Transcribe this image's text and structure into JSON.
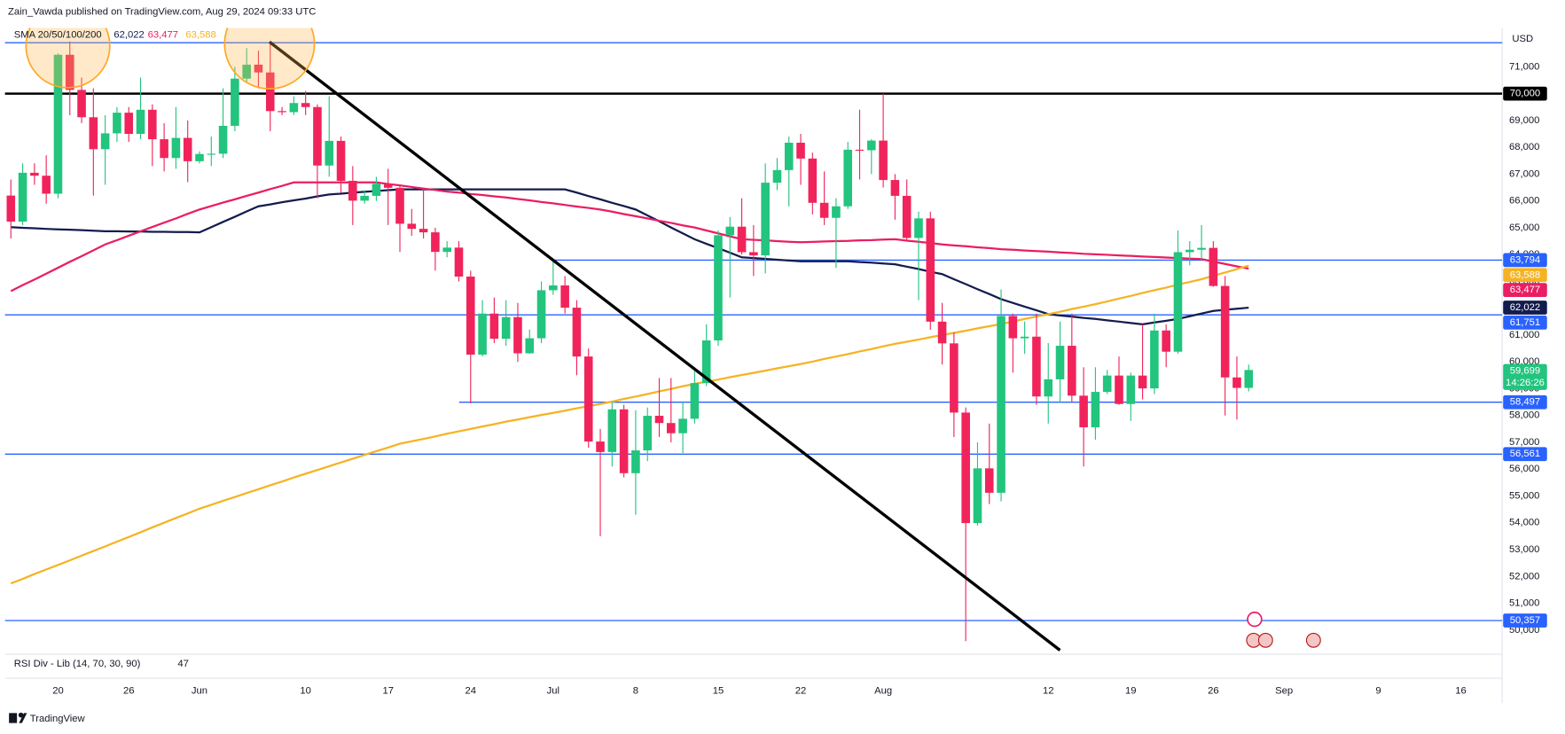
{
  "header": {
    "text": "Zain_Vawda published on TradingView.com, Aug 29, 2024 09:33 UTC"
  },
  "footer": {
    "brand": "TradingView"
  },
  "chart_data": {
    "type": "candlestick",
    "currency": "USD",
    "categories": [
      null,
      null,
      null,
      null,
      "20",
      null,
      null,
      null,
      null,
      null,
      "26",
      null,
      null,
      null,
      null,
      null,
      "Jun",
      null,
      null,
      null,
      null,
      null,
      null,
      null,
      null,
      "10",
      null,
      null,
      null,
      null,
      null,
      null,
      "17",
      null,
      null,
      null,
      null,
      null,
      null,
      "24",
      null,
      null,
      null,
      null,
      null,
      null,
      "Jul",
      null,
      null,
      null,
      null,
      null,
      null,
      "8",
      null,
      null,
      null,
      null,
      null,
      null,
      "15",
      null,
      null,
      null,
      null,
      null,
      null,
      "22",
      null,
      null,
      null,
      null,
      null,
      null,
      "Aug",
      null,
      null,
      null,
      null,
      null,
      null,
      null,
      null,
      null,
      null,
      null,
      null,
      null,
      "12",
      null,
      null,
      null,
      null,
      null,
      null,
      "19",
      null,
      null,
      null,
      null,
      null,
      null,
      "26",
      null,
      null,
      null,
      null,
      null,
      "Sep",
      null,
      null,
      null,
      null,
      null,
      null,
      null,
      "9",
      null,
      null,
      null,
      null,
      null,
      null,
      "16",
      null,
      null,
      null
    ],
    "open": [
      66200,
      65230,
      67050,
      66940,
      66270,
      71450,
      70140,
      69120,
      67930,
      68520,
      69290,
      68500,
      69400,
      68300,
      67600,
      68350,
      67480,
      67750,
      67760,
      68800,
      70560,
      71080,
      70790,
      69350,
      69310,
      69650,
      69500,
      67320,
      68240,
      66750,
      66010,
      66190,
      66640,
      66490,
      65150,
      64960,
      64830,
      64100,
      64260,
      63180,
      60270,
      61800,
      60860,
      61670,
      60320,
      60880,
      62670,
      62850,
      62020,
      60200,
      57030,
      56640,
      58230,
      55850,
      56700,
      57990,
      57720,
      57340,
      57880,
      59210,
      60800,
      64720,
      65040,
      64090,
      63970,
      66680,
      67150,
      68170,
      67580,
      65930,
      65370,
      65800,
      67910,
      67890,
      68250,
      66780,
      66190,
      64620,
      65350,
      61500,
      60690,
      58110,
      53990,
      56030,
      55120,
      61710,
      60880,
      60940,
      58710,
      59350,
      60600,
      58740,
      57560,
      58880,
      59490,
      58430,
      59490,
      59010,
      61170,
      60380,
      64090,
      64180,
      64250,
      62830,
      59420,
      59030,
      null,
      null,
      null,
      null,
      null,
      null,
      null,
      null,
      null,
      null,
      null,
      null,
      null,
      null,
      null,
      null,
      null,
      null,
      null,
      null,
      null
    ],
    "high": [
      66800,
      67400,
      67400,
      67700,
      71500,
      71950,
      70600,
      70200,
      69200,
      69500,
      69500,
      70600,
      69600,
      68900,
      69500,
      69000,
      67850,
      68400,
      70200,
      71000,
      71700,
      71600,
      71950,
      69500,
      69900,
      70100,
      69600,
      69900,
      68400,
      67300,
      66400,
      66900,
      67200,
      66600,
      65700,
      66500,
      65000,
      64500,
      64500,
      63400,
      62300,
      62400,
      62300,
      62200,
      61200,
      63000,
      63800,
      63200,
      62300,
      60500,
      57500,
      58500,
      58400,
      58200,
      58300,
      59400,
      59400,
      58500,
      59800,
      61400,
      64900,
      65400,
      66100,
      65100,
      67400,
      67600,
      68400,
      68500,
      67800,
      67100,
      66100,
      68200,
      69400,
      68300,
      70000,
      67000,
      66800,
      65600,
      65600,
      62200,
      61100,
      58300,
      57000,
      57700,
      62700,
      61800,
      61500,
      61800,
      60700,
      61500,
      61800,
      59800,
      59800,
      59700,
      60200,
      59600,
      61400,
      61800,
      61400,
      64900,
      64500,
      65100,
      64500,
      63200,
      60200,
      59900,
      null,
      null,
      null,
      null,
      null,
      null,
      null,
      null,
      null,
      null,
      null,
      null,
      null,
      null,
      null,
      null,
      null,
      null,
      null,
      null,
      null
    ],
    "low": [
      64600,
      65100,
      66600,
      65900,
      66100,
      69200,
      68900,
      66200,
      66600,
      68200,
      68200,
      68300,
      67300,
      67100,
      67200,
      66700,
      67400,
      67300,
      67600,
      68600,
      70400,
      70200,
      68600,
      69200,
      69200,
      69200,
      66100,
      66900,
      66300,
      65100,
      65900,
      66000,
      65100,
      64100,
      64700,
      64600,
      63400,
      63900,
      63000,
      58450,
      60200,
      60700,
      60600,
      60000,
      60300,
      60700,
      62500,
      61800,
      59500,
      56800,
      53500,
      56100,
      55700,
      54300,
      56300,
      57200,
      57000,
      56600,
      57700,
      59100,
      60600,
      62400,
      64000,
      63200,
      63300,
      66400,
      65800,
      66600,
      65500,
      65100,
      63500,
      65700,
      66800,
      67000,
      66500,
      65300,
      64500,
      62300,
      61200,
      59900,
      57200,
      49590,
      53900,
      54700,
      54800,
      59600,
      60300,
      58400,
      57700,
      58500,
      58500,
      56100,
      57100,
      58800,
      58400,
      57800,
      58600,
      58800,
      59800,
      60300,
      63600,
      63800,
      62800,
      58000,
      57850,
      58900,
      null,
      null,
      null,
      null,
      null,
      null,
      null,
      null,
      null,
      null,
      null,
      null,
      null,
      null,
      null,
      null,
      null,
      null,
      null,
      null,
      null
    ],
    "close": [
      65230,
      67050,
      66940,
      66270,
      71450,
      70140,
      69120,
      67930,
      68520,
      69290,
      68500,
      69400,
      68300,
      67600,
      68350,
      67480,
      67750,
      67760,
      68800,
      70560,
      71080,
      70790,
      69350,
      69310,
      69650,
      69500,
      67320,
      68240,
      66750,
      66010,
      66190,
      66640,
      66490,
      65150,
      64960,
      64830,
      64100,
      64260,
      63180,
      60270,
      61800,
      60860,
      61670,
      60320,
      60880,
      62670,
      62850,
      62020,
      60200,
      57030,
      56640,
      58230,
      55850,
      56700,
      57990,
      57720,
      57340,
      57880,
      59210,
      60800,
      64720,
      65040,
      64090,
      63970,
      66680,
      67150,
      68170,
      67580,
      65930,
      65370,
      65800,
      67910,
      67890,
      68250,
      66780,
      66190,
      64620,
      65350,
      61500,
      60690,
      58110,
      53990,
      56030,
      55120,
      61710,
      60880,
      60940,
      58710,
      59350,
      60600,
      58740,
      57560,
      58880,
      59490,
      58430,
      59490,
      59010,
      61170,
      60380,
      64090,
      64180,
      64250,
      62830,
      59420,
      59030,
      59699,
      null,
      null,
      null,
      null,
      null,
      null,
      null,
      null,
      null,
      null,
      null,
      null,
      null,
      null,
      null,
      null,
      null,
      null,
      null,
      null,
      null
    ],
    "up_color": "#22c47e",
    "down_color": "#f0245b",
    "ylim": [
      49250,
      72450
    ],
    "yticks": [
      {
        "value": 50000,
        "label": "50,000"
      },
      {
        "value": 51000,
        "label": "51,000"
      },
      {
        "value": 52000,
        "label": "52,000"
      },
      {
        "value": 53000,
        "label": "53,000"
      },
      {
        "value": 54000,
        "label": "54,000"
      },
      {
        "value": 55000,
        "label": "55,000"
      },
      {
        "value": 56000,
        "label": "56,000"
      },
      {
        "value": 57000,
        "label": "57,000"
      },
      {
        "value": 58000,
        "label": "58,000"
      },
      {
        "value": 59000,
        "label": "59,000"
      },
      {
        "value": 60000,
        "label": "60,000"
      },
      {
        "value": 61000,
        "label": "61,000"
      },
      {
        "value": 62000,
        "label": "62,000"
      },
      {
        "value": 63000,
        "label": "63,000"
      },
      {
        "value": 64000,
        "label": "64,000"
      },
      {
        "value": 65000,
        "label": "65,000"
      },
      {
        "value": 66000,
        "label": "66,000"
      },
      {
        "value": 67000,
        "label": "67,000"
      },
      {
        "value": 68000,
        "label": "68,000"
      },
      {
        "value": 69000,
        "label": "69,000"
      },
      {
        "value": 70000,
        "label": "70,000"
      },
      {
        "value": 71000,
        "label": "71,000"
      }
    ],
    "indicator": {
      "name": "SMA 20/50/100/200",
      "lines": [
        {
          "color": "#131c4e",
          "label": "62,022",
          "values": [
            65020,
            65000,
            64980,
            64960,
            64940,
            64930,
            64910,
            64890,
            64870,
            64870,
            64860,
            64860,
            64850,
            64850,
            64840,
            64840,
            64830,
            65020,
            65220,
            65410,
            65610,
            65800,
            65870,
            65950,
            66020,
            66090,
            66170,
            66240,
            66270,
            66310,
            66340,
            66370,
            66400,
            66430,
            66430,
            66430,
            66430,
            66430,
            66430,
            66430,
            66430,
            66430,
            66430,
            66430,
            66430,
            66430,
            66430,
            66430,
            66310,
            66180,
            66060,
            65930,
            65810,
            65680,
            65460,
            65240,
            65010,
            64790,
            64570,
            64400,
            64240,
            64070,
            63900,
            63870,
            63840,
            63810,
            63780,
            63750,
            63750,
            63750,
            63750,
            63750,
            63720,
            63700,
            63670,
            63640,
            63550,
            63460,
            63360,
            63270,
            63080,
            62900,
            62710,
            62530,
            62340,
            62200,
            62060,
            61920,
            61780,
            61730,
            61690,
            61640,
            61600,
            61550,
            61500,
            61450,
            61400,
            61470,
            61530,
            61600,
            61700,
            61800,
            61900,
            61940,
            61980,
            62022,
            null,
            null,
            null,
            null,
            null,
            null,
            null,
            null,
            null,
            null,
            null,
            null,
            null,
            null,
            null,
            null,
            null,
            null,
            null,
            null,
            null
          ]
        },
        {
          "color": "#e91e63",
          "label": "63,477",
          "values": [
            62640,
            62860,
            63070,
            63290,
            63510,
            63730,
            63940,
            64160,
            64380,
            64540,
            64700,
            64870,
            65030,
            65190,
            65350,
            65520,
            65680,
            65810,
            65940,
            66060,
            66190,
            66310,
            66440,
            66560,
            66690,
            66690,
            66690,
            66690,
            66690,
            66690,
            66690,
            66690,
            66630,
            66580,
            66520,
            66460,
            66410,
            66350,
            66310,
            66260,
            66220,
            66170,
            66130,
            66070,
            66020,
            65960,
            65910,
            65850,
            65790,
            65740,
            65680,
            65600,
            65510,
            65430,
            65350,
            65260,
            65180,
            65090,
            65010,
            64900,
            64790,
            64680,
            64570,
            64550,
            64530,
            64500,
            64480,
            64460,
            64470,
            64490,
            64500,
            64510,
            64530,
            64540,
            64560,
            64570,
            64520,
            64480,
            64430,
            64380,
            64340,
            64310,
            64270,
            64240,
            64200,
            64180,
            64150,
            64130,
            64110,
            64080,
            64060,
            64030,
            64010,
            63990,
            63970,
            63950,
            63930,
            63910,
            63890,
            63870,
            63850,
            63830,
            63740,
            63650,
            63560,
            63477,
            null,
            null,
            null,
            null,
            null,
            null,
            null,
            null,
            null,
            null,
            null,
            null,
            null,
            null,
            null,
            null,
            null,
            null,
            null,
            null,
            null
          ]
        },
        {
          "color": "#f5b324",
          "label": "63,588",
          "values": [
            51740,
            51910,
            52090,
            52260,
            52430,
            52600,
            52780,
            52950,
            53120,
            53300,
            53470,
            53650,
            53830,
            54000,
            54180,
            54350,
            54530,
            54670,
            54820,
            54960,
            55110,
            55250,
            55400,
            55540,
            55690,
            55830,
            55970,
            56110,
            56250,
            56390,
            56530,
            56670,
            56810,
            56950,
            57040,
            57130,
            57220,
            57320,
            57410,
            57500,
            57590,
            57680,
            57770,
            57850,
            57940,
            58020,
            58100,
            58180,
            58270,
            58350,
            58430,
            58520,
            58620,
            58710,
            58800,
            58900,
            58990,
            59090,
            59180,
            59260,
            59340,
            59430,
            59510,
            59590,
            59670,
            59760,
            59840,
            59920,
            60010,
            60110,
            60200,
            60290,
            60390,
            60480,
            60580,
            60670,
            60750,
            60830,
            60920,
            61000,
            61080,
            61160,
            61250,
            61330,
            61410,
            61500,
            61600,
            61690,
            61780,
            61870,
            61970,
            62060,
            62150,
            62250,
            62360,
            62460,
            62570,
            62670,
            62770,
            62880,
            62980,
            63080,
            63210,
            63330,
            63460,
            63588,
            null,
            null,
            null,
            null,
            null,
            null,
            null,
            null,
            null,
            null,
            null,
            null,
            null,
            null,
            null,
            null,
            null,
            null,
            null,
            null,
            null
          ]
        }
      ]
    },
    "levels": [
      {
        "value": 71900,
        "color": "#2962ff"
      },
      {
        "value": 70000,
        "label": "70,000",
        "color": "#000000"
      },
      {
        "value": 63794,
        "label": "63,794",
        "color": "#2962ff"
      },
      {
        "value": 61751,
        "label": "61,751",
        "color": "#2962ff"
      },
      {
        "value": 58497,
        "label": "58,497",
        "color": "#2962ff"
      },
      {
        "value": 56561,
        "label": "56,561",
        "color": "#2962ff"
      },
      {
        "value": 50357,
        "label": "50,357",
        "color": "#2962ff"
      }
    ],
    "last_label": "59,699",
    "countdown": "14:26:26",
    "rsi": {
      "name": "RSI Div - Lib (14, 70, 30, 90)",
      "value": 47
    }
  }
}
